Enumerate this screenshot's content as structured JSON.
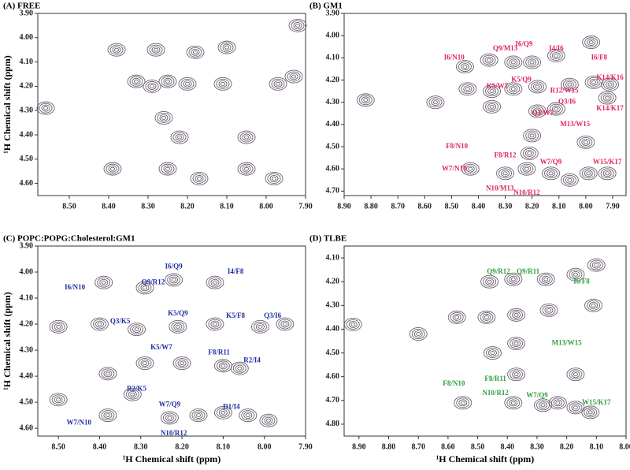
{
  "chart_data": [
    {
      "type": "contour",
      "title": "(A)  FREE",
      "ylabel": "¹H Chemical shift (ppm)",
      "color": "#6b6070",
      "xlim": [
        8.58,
        7.9
      ],
      "ylim": [
        3.9,
        4.65
      ],
      "xticks": [
        {
          "value": 8.5,
          "label": "8.50"
        },
        {
          "value": 8.4,
          "label": "8.40"
        },
        {
          "value": 8.3,
          "label": "8.30"
        },
        {
          "value": 8.2,
          "label": "8.20"
        },
        {
          "value": 8.1,
          "label": "8.10"
        },
        {
          "value": 8.0,
          "label": "8.00"
        },
        {
          "value": 7.9,
          "label": "7.90"
        }
      ],
      "yticks": [
        {
          "value": 3.9,
          "label": "3.90"
        },
        {
          "value": 4.0,
          "label": "4.00"
        },
        {
          "value": 4.1,
          "label": "4.10"
        },
        {
          "value": 4.2,
          "label": "4.20"
        },
        {
          "value": 4.3,
          "label": "4.30"
        },
        {
          "value": 4.4,
          "label": "4.40"
        },
        {
          "value": 4.5,
          "label": "4.50"
        },
        {
          "value": 4.6,
          "label": "4.60"
        }
      ],
      "peaks": {
        "x": [
          8.56,
          8.38,
          8.28,
          8.18,
          7.92,
          8.1,
          8.33,
          8.25,
          8.2,
          8.11,
          7.97,
          7.93,
          8.26,
          8.22,
          8.05,
          8.39,
          8.25,
          8.17,
          8.05,
          7.98,
          8.29
        ],
        "y": [
          4.29,
          4.05,
          4.05,
          4.06,
          3.95,
          4.04,
          4.18,
          4.18,
          4.19,
          4.19,
          4.19,
          4.16,
          4.33,
          4.41,
          4.41,
          4.54,
          4.54,
          4.58,
          4.54,
          4.58,
          4.2
        ]
      },
      "annotations": []
    },
    {
      "type": "contour",
      "title": "(B)  GM1",
      "color": "#6b6070",
      "label_color": "#e0245e",
      "xlim": [
        8.9,
        7.85
      ],
      "ylim": [
        3.9,
        4.72
      ],
      "xticks": [
        {
          "value": 8.9,
          "label": "8.90"
        },
        {
          "value": 8.8,
          "label": "8.80"
        },
        {
          "value": 8.7,
          "label": "8.70"
        },
        {
          "value": 8.6,
          "label": "8.60"
        },
        {
          "value": 8.5,
          "label": "8.50"
        },
        {
          "value": 8.4,
          "label": "8.40"
        },
        {
          "value": 8.3,
          "label": "8.30"
        },
        {
          "value": 8.2,
          "label": "8.20"
        },
        {
          "value": 8.1,
          "label": "8.10"
        },
        {
          "value": 8.0,
          "label": "8.00"
        },
        {
          "value": 7.9,
          "label": "7.90"
        }
      ],
      "yticks": [
        {
          "value": 3.9,
          "label": "3.90"
        },
        {
          "value": 4.0,
          "label": "4.00"
        },
        {
          "value": 4.1,
          "label": "4.10"
        },
        {
          "value": 4.2,
          "label": "4.20"
        },
        {
          "value": 4.3,
          "label": "4.30"
        },
        {
          "value": 4.4,
          "label": "4.40"
        },
        {
          "value": 4.5,
          "label": "4.50"
        },
        {
          "value": 4.6,
          "label": "4.60"
        },
        {
          "value": 4.7,
          "label": "4.70"
        }
      ],
      "peaks": {
        "x": [
          8.82,
          8.56,
          8.45,
          8.36,
          8.27,
          8.2,
          8.11,
          7.98,
          8.44,
          8.35,
          8.27,
          8.18,
          8.06,
          7.97,
          7.91,
          8.35,
          8.18,
          8.11,
          7.92,
          8.2,
          8.0,
          8.43,
          8.3,
          8.22,
          8.13,
          8.06,
          7.99,
          7.92,
          8.21
        ],
        "y": [
          4.29,
          4.3,
          4.14,
          4.11,
          4.12,
          4.12,
          4.09,
          4.03,
          4.24,
          4.25,
          4.24,
          4.23,
          4.22,
          4.21,
          4.22,
          4.32,
          4.34,
          4.33,
          4.28,
          4.45,
          4.48,
          4.6,
          4.62,
          4.6,
          4.62,
          4.65,
          4.62,
          4.62,
          4.53
        ]
      },
      "annotations": [
        {
          "text": "I6/N10",
          "x": 8.49,
          "y": 4.1
        },
        {
          "text": "Q9/M13",
          "x": 8.3,
          "y": 4.06
        },
        {
          "text": "I6/Q9",
          "x": 8.23,
          "y": 4.04
        },
        {
          "text": "I4/I6",
          "x": 8.11,
          "y": 4.06
        },
        {
          "text": "I6/F8",
          "x": 7.95,
          "y": 4.1
        },
        {
          "text": "K5/W7",
          "x": 8.33,
          "y": 4.23
        },
        {
          "text": "K5/Q9",
          "x": 8.24,
          "y": 4.2
        },
        {
          "text": "R12/W15",
          "x": 8.08,
          "y": 4.25
        },
        {
          "text": "K14/K16",
          "x": 7.91,
          "y": 4.19
        },
        {
          "text": "K14/K17",
          "x": 7.91,
          "y": 4.33
        },
        {
          "text": "Q3/I6",
          "x": 8.07,
          "y": 4.3
        },
        {
          "text": "Q3/W7",
          "x": 8.16,
          "y": 4.35
        },
        {
          "text": "M13/W15",
          "x": 8.04,
          "y": 4.4
        },
        {
          "text": "F8/N10",
          "x": 8.48,
          "y": 4.5
        },
        {
          "text": "F8/R12",
          "x": 8.3,
          "y": 4.54
        },
        {
          "text": "W7/Q9",
          "x": 8.13,
          "y": 4.57
        },
        {
          "text": "W15/K17",
          "x": 7.92,
          "y": 4.57
        },
        {
          "text": "W7/N10",
          "x": 8.49,
          "y": 4.6
        },
        {
          "text": "N10/M13",
          "x": 8.32,
          "y": 4.69
        },
        {
          "text": "N10/R12",
          "x": 8.22,
          "y": 4.71
        }
      ]
    },
    {
      "type": "contour",
      "title": "(C)  POPC:POPG:Cholesterol:GM1",
      "xlabel": "¹H Chemical shift (ppm)",
      "ylabel": "¹H Chemical shift (ppm)",
      "color": "#6b6070",
      "label_color": "#1f2fa0",
      "xlim": [
        8.55,
        7.9
      ],
      "ylim": [
        3.9,
        4.63
      ],
      "xticks": [
        {
          "value": 8.5,
          "label": "8.50"
        },
        {
          "value": 8.4,
          "label": "8.40"
        },
        {
          "value": 8.3,
          "label": "8.30"
        },
        {
          "value": 8.2,
          "label": "8.20"
        },
        {
          "value": 8.1,
          "label": "8.10"
        },
        {
          "value": 8.0,
          "label": "8.00"
        },
        {
          "value": 7.9,
          "label": "7.90"
        }
      ],
      "yticks": [
        {
          "value": 3.9,
          "label": "3.90"
        },
        {
          "value": 4.0,
          "label": "4.00"
        },
        {
          "value": 4.1,
          "label": "4.10"
        },
        {
          "value": 4.2,
          "label": "4.20"
        },
        {
          "value": 4.3,
          "label": "4.30"
        },
        {
          "value": 4.4,
          "label": "4.40"
        },
        {
          "value": 4.5,
          "label": "4.50"
        },
        {
          "value": 4.6,
          "label": "4.60"
        }
      ],
      "peaks": {
        "x": [
          8.39,
          8.29,
          8.22,
          8.12,
          8.5,
          8.4,
          8.31,
          8.21,
          8.12,
          8.01,
          7.95,
          8.29,
          8.2,
          8.1,
          8.06,
          8.38,
          8.5,
          8.38,
          8.32,
          8.23,
          8.16,
          8.1,
          8.04,
          7.99
        ],
        "y": [
          4.04,
          4.06,
          4.03,
          4.04,
          4.21,
          4.2,
          4.22,
          4.21,
          4.2,
          4.21,
          4.2,
          4.35,
          4.35,
          4.36,
          4.37,
          4.39,
          4.49,
          4.55,
          4.47,
          4.56,
          4.55,
          4.54,
          4.55,
          4.57
        ]
      },
      "annotations": [
        {
          "text": "I6/N10",
          "x": 8.46,
          "y": 4.06
        },
        {
          "text": "Q9/R12",
          "x": 8.27,
          "y": 4.04
        },
        {
          "text": "I6/Q9",
          "x": 8.22,
          "y": 3.98
        },
        {
          "text": "I4/F8",
          "x": 8.07,
          "y": 4.0
        },
        {
          "text": "K5/Q9",
          "x": 8.21,
          "y": 4.16
        },
        {
          "text": "Q3/K5",
          "x": 8.35,
          "y": 4.19
        },
        {
          "text": "K5/F8",
          "x": 8.07,
          "y": 4.17
        },
        {
          "text": "Q3/I6",
          "x": 7.98,
          "y": 4.17
        },
        {
          "text": "K5/W7",
          "x": 8.25,
          "y": 4.29
        },
        {
          "text": "F8/R11",
          "x": 8.11,
          "y": 4.31
        },
        {
          "text": "R2/I4",
          "x": 8.03,
          "y": 4.34
        },
        {
          "text": "R2/K5",
          "x": 8.31,
          "y": 4.45
        },
        {
          "text": "W7/Q9",
          "x": 8.23,
          "y": 4.51
        },
        {
          "text": "D1/I4",
          "x": 8.08,
          "y": 4.52
        },
        {
          "text": "W7/N10",
          "x": 8.45,
          "y": 4.58
        },
        {
          "text": "N10/R12",
          "x": 8.22,
          "y": 4.62
        }
      ]
    },
    {
      "type": "contour",
      "title": "(D)  TLBE",
      "xlabel": "¹H Chemical shift (ppm)",
      "color": "#6b6070",
      "label_color": "#2e9e3e",
      "xlim": [
        8.95,
        8.0
      ],
      "ylim": [
        4.05,
        4.85
      ],
      "xticks": [
        {
          "value": 8.9,
          "label": "8.90"
        },
        {
          "value": 8.8,
          "label": "8.80"
        },
        {
          "value": 8.7,
          "label": "8.70"
        },
        {
          "value": 8.6,
          "label": "8.60"
        },
        {
          "value": 8.5,
          "label": "8.50"
        },
        {
          "value": 8.4,
          "label": "8.40"
        },
        {
          "value": 8.3,
          "label": "8.30"
        },
        {
          "value": 8.2,
          "label": "8.20"
        },
        {
          "value": 8.1,
          "label": "8.10"
        },
        {
          "value": 8.0,
          "label": "8.00"
        }
      ],
      "yticks": [
        {
          "value": 4.1,
          "label": "4.10"
        },
        {
          "value": 4.2,
          "label": "4.20"
        },
        {
          "value": 4.3,
          "label": "4.30"
        },
        {
          "value": 4.4,
          "label": "4.40"
        },
        {
          "value": 4.5,
          "label": "4.50"
        },
        {
          "value": 4.6,
          "label": "4.60"
        },
        {
          "value": 4.7,
          "label": "4.70"
        },
        {
          "value": 4.8,
          "label": "4.80"
        }
      ],
      "peaks": {
        "x": [
          8.92,
          8.7,
          8.46,
          8.38,
          8.27,
          8.17,
          8.1,
          8.57,
          8.47,
          8.37,
          8.26,
          8.11,
          8.37,
          8.45,
          8.37,
          8.17,
          8.55,
          8.38,
          8.28,
          8.23,
          8.17,
          8.12
        ],
        "y": [
          4.38,
          4.42,
          4.2,
          4.19,
          4.19,
          4.17,
          4.13,
          4.35,
          4.35,
          4.34,
          4.32,
          4.3,
          4.46,
          4.5,
          4.59,
          4.59,
          4.71,
          4.71,
          4.72,
          4.71,
          4.73,
          4.75
        ]
      },
      "annotations": [
        {
          "text": "Q9/R12",
          "x": 8.43,
          "y": 4.16
        },
        {
          "text": "Q9/R11",
          "x": 8.33,
          "y": 4.16
        },
        {
          "text": "I6/F8",
          "x": 8.15,
          "y": 4.2
        },
        {
          "text": "M13/W15",
          "x": 8.2,
          "y": 4.46
        },
        {
          "text": "F8/N10",
          "x": 8.58,
          "y": 4.63
        },
        {
          "text": "F8/R11",
          "x": 8.44,
          "y": 4.61
        },
        {
          "text": "N10/R12",
          "x": 8.44,
          "y": 4.67
        },
        {
          "text": "W7/Q9",
          "x": 8.3,
          "y": 4.68
        },
        {
          "text": "W15/K17",
          "x": 8.1,
          "y": 4.71
        }
      ]
    }
  ]
}
